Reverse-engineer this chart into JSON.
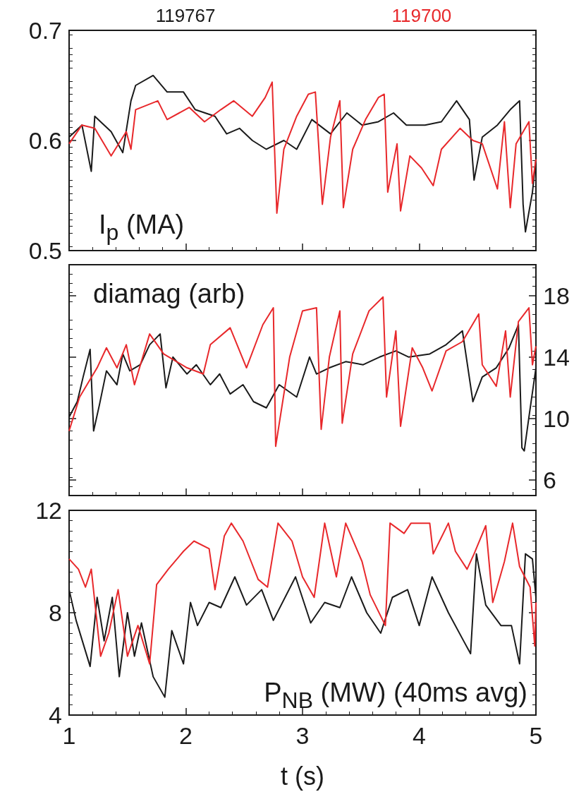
{
  "chart_data": [
    {
      "type": "line",
      "title": "I$_{p}$ (MA)",
      "xlim": [
        1,
        5
      ],
      "xticks": [
        1,
        2,
        3,
        4,
        5
      ],
      "ylim": [
        0.5,
        0.7
      ],
      "yticks": [
        0.5,
        0.6,
        0.7
      ],
      "tick_labels": "y",
      "legend": "top",
      "series": [
        {
          "name": "119767",
          "color": "#1a1a1a",
          "x": [
            1.0,
            1.11,
            1.19,
            1.22,
            1.36,
            1.46,
            1.53,
            1.57,
            1.72,
            1.84,
            1.98,
            2.08,
            2.25,
            2.35,
            2.46,
            2.57,
            2.69,
            2.84,
            2.95,
            3.08,
            3.24,
            3.38,
            3.51,
            3.65,
            3.78,
            3.89,
            4.05,
            4.19,
            4.32,
            4.43,
            4.47,
            4.54,
            4.67,
            4.78,
            4.86,
            4.89,
            4.91,
            4.97,
            5.0
          ],
          "values": [
            0.603,
            0.614,
            0.572,
            0.622,
            0.608,
            0.589,
            0.636,
            0.65,
            0.659,
            0.644,
            0.644,
            0.628,
            0.622,
            0.606,
            0.611,
            0.6,
            0.592,
            0.6,
            0.592,
            0.619,
            0.606,
            0.625,
            0.614,
            0.617,
            0.625,
            0.614,
            0.614,
            0.617,
            0.636,
            0.619,
            0.564,
            0.603,
            0.614,
            0.628,
            0.636,
            0.542,
            0.517,
            0.553,
            0.583
          ]
        },
        {
          "name": "119700",
          "color": "#e8282b",
          "x": [
            1.0,
            1.11,
            1.22,
            1.36,
            1.49,
            1.53,
            1.57,
            1.76,
            1.84,
            2.03,
            2.16,
            2.3,
            2.41,
            2.57,
            2.68,
            2.74,
            2.78,
            2.84,
            2.95,
            3.05,
            3.11,
            3.17,
            3.24,
            3.32,
            3.35,
            3.43,
            3.54,
            3.65,
            3.7,
            3.73,
            3.81,
            3.84,
            3.92,
            4.02,
            4.12,
            4.19,
            4.35,
            4.46,
            4.54,
            4.67,
            4.73,
            4.78,
            4.83,
            4.94,
            4.97,
            5.0
          ],
          "values": [
            0.597,
            0.614,
            0.611,
            0.586,
            0.608,
            0.592,
            0.628,
            0.636,
            0.619,
            0.63,
            0.617,
            0.628,
            0.636,
            0.622,
            0.639,
            0.653,
            0.534,
            0.592,
            0.622,
            0.642,
            0.644,
            0.542,
            0.603,
            0.636,
            0.539,
            0.592,
            0.619,
            0.639,
            0.642,
            0.553,
            0.597,
            0.536,
            0.586,
            0.575,
            0.559,
            0.592,
            0.611,
            0.6,
            0.597,
            0.556,
            0.617,
            0.539,
            0.597,
            0.617,
            0.561,
            0.583
          ]
        }
      ]
    },
    {
      "type": "line",
      "title": "diamag (arb)",
      "xlim": [
        1,
        5
      ],
      "xticks": [
        1,
        2,
        3,
        4,
        5
      ],
      "y2lim": [
        5,
        20
      ],
      "y2ticks": [
        6,
        10,
        14,
        18
      ],
      "tick_labels": "y",
      "series": [
        {
          "color": "#1a1a1a",
          "axis": "y2",
          "x": [
            1.0,
            1.07,
            1.12,
            1.18,
            1.21,
            1.26,
            1.32,
            1.41,
            1.46,
            1.52,
            1.61,
            1.69,
            1.78,
            1.83,
            1.89,
            2.01,
            2.09,
            2.21,
            2.29,
            2.38,
            2.49,
            2.58,
            2.69,
            2.8,
            2.95,
            3.06,
            3.12,
            3.23,
            3.37,
            3.52,
            3.66,
            3.8,
            3.91,
            4.09,
            4.23,
            4.37,
            4.46,
            4.54,
            4.66,
            4.77,
            4.85,
            4.88,
            4.9,
            4.94,
            5.0
          ],
          "values": [
            10.1,
            11.1,
            12.7,
            14.5,
            9.2,
            10.9,
            13.1,
            12.2,
            14.2,
            13.1,
            13.5,
            14.8,
            15.5,
            12.0,
            14.0,
            12.9,
            13.5,
            12.2,
            12.9,
            11.6,
            12.2,
            11.1,
            10.7,
            12.2,
            11.4,
            14.0,
            12.9,
            13.3,
            13.7,
            13.5,
            14.0,
            14.4,
            14.0,
            14.2,
            14.8,
            15.7,
            11.1,
            12.7,
            13.3,
            14.6,
            16.1,
            8.1,
            7.9,
            10.1,
            13.3
          ]
        },
        {
          "color": "#e8282b",
          "axis": "y2",
          "x": [
            1.0,
            1.09,
            1.24,
            1.32,
            1.41,
            1.49,
            1.56,
            1.69,
            1.81,
            2.01,
            2.15,
            2.21,
            2.38,
            2.52,
            2.66,
            2.75,
            2.77,
            2.89,
            3.0,
            3.12,
            3.16,
            3.23,
            3.32,
            3.34,
            3.43,
            3.57,
            3.69,
            3.72,
            3.8,
            3.84,
            3.94,
            4.03,
            4.11,
            4.23,
            4.37,
            4.51,
            4.54,
            4.66,
            4.74,
            4.78,
            4.85,
            4.94,
            4.97,
            5.0
          ],
          "values": [
            9.2,
            11.4,
            13.3,
            14.6,
            13.3,
            14.8,
            12.2,
            15.5,
            14.2,
            13.3,
            12.9,
            14.8,
            15.9,
            13.3,
            16.1,
            17.2,
            8.2,
            14.0,
            17.0,
            17.2,
            9.3,
            14.0,
            17.0,
            9.7,
            14.2,
            17.0,
            17.9,
            11.4,
            15.7,
            9.5,
            14.6,
            13.3,
            11.8,
            14.4,
            15.0,
            16.8,
            13.5,
            12.1,
            15.7,
            11.4,
            16.3,
            17.2,
            13.5,
            14.7
          ]
        }
      ]
    },
    {
      "type": "line",
      "title": "P$_{NB}$ (MW) (40ms avg)",
      "xlabel": "t (s)",
      "xlim": [
        1,
        5
      ],
      "xticks": [
        1,
        2,
        3,
        4,
        5
      ],
      "ylim": [
        4,
        12
      ],
      "yticks": [
        4,
        8,
        12
      ],
      "series": [
        {
          "color": "#1a1a1a",
          "x": [
            1.0,
            1.06,
            1.18,
            1.24,
            1.3,
            1.37,
            1.43,
            1.5,
            1.56,
            1.62,
            1.72,
            1.82,
            1.88,
            1.98,
            2.04,
            2.1,
            2.2,
            2.3,
            2.42,
            2.52,
            2.65,
            2.75,
            2.94,
            3.07,
            3.19,
            3.32,
            3.42,
            3.55,
            3.67,
            3.77,
            3.9,
            4.0,
            4.11,
            4.25,
            4.38,
            4.44,
            4.49,
            4.57,
            4.7,
            4.79,
            4.86,
            4.91,
            4.97,
            5.0
          ],
          "values": [
            8.9,
            7.7,
            5.9,
            8.6,
            6.9,
            8.6,
            5.5,
            8.0,
            6.3,
            7.6,
            5.5,
            4.7,
            7.3,
            6.0,
            8.4,
            7.5,
            8.4,
            8.2,
            9.4,
            8.3,
            8.9,
            7.7,
            9.4,
            7.6,
            8.4,
            8.2,
            9.4,
            8.0,
            7.2,
            8.6,
            8.9,
            7.5,
            9.4,
            8.0,
            6.9,
            6.4,
            10.3,
            8.3,
            7.5,
            7.5,
            6.0,
            10.3,
            10.1,
            8.6
          ]
        },
        {
          "color": "#e8282b",
          "x": [
            1.0,
            1.08,
            1.14,
            1.19,
            1.27,
            1.34,
            1.42,
            1.5,
            1.59,
            1.69,
            1.75,
            1.85,
            1.98,
            2.07,
            2.2,
            2.25,
            2.33,
            2.39,
            2.49,
            2.62,
            2.7,
            2.79,
            2.91,
            3.0,
            3.1,
            3.19,
            3.29,
            3.37,
            3.51,
            3.58,
            3.71,
            3.75,
            3.87,
            3.93,
            4.09,
            4.12,
            4.25,
            4.31,
            4.41,
            4.47,
            4.57,
            4.63,
            4.73,
            4.8,
            4.86,
            4.95,
            4.99,
            5.0
          ],
          "values": [
            10.1,
            9.7,
            9.0,
            9.7,
            6.3,
            7.2,
            8.9,
            6.3,
            7.5,
            6.0,
            9.1,
            9.7,
            10.4,
            10.8,
            10.5,
            8.9,
            11.0,
            11.5,
            10.8,
            9.3,
            9.0,
            11.5,
            10.8,
            9.4,
            8.6,
            11.5,
            9.4,
            11.5,
            10.0,
            8.7,
            7.5,
            11.5,
            11.1,
            11.5,
            11.5,
            10.3,
            11.5,
            10.4,
            9.7,
            10.3,
            11.4,
            8.4,
            10.0,
            11.5,
            9.8,
            9.0,
            6.7,
            8.4
          ]
        }
      ]
    }
  ]
}
